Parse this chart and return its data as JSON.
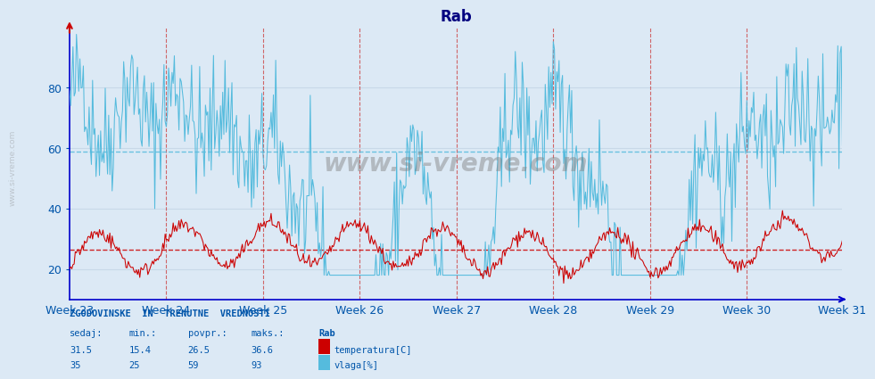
{
  "title": "Rab",
  "title_fontsize": 12,
  "title_color": "#000080",
  "bg_color": "#dce9f5",
  "x_weeks": [
    "Week 23",
    "Week 24",
    "Week 25",
    "Week 26",
    "Week 27",
    "Week 28",
    "Week 29",
    "Week 30",
    "Week 31"
  ],
  "ylim": [
    10,
    100
  ],
  "yticks": [
    20,
    40,
    60,
    80
  ],
  "temp_color": "#cc0000",
  "vlaga_color": "#55bbdd",
  "temp_avg": 26.5,
  "temp_min": 15.4,
  "temp_max": 36.6,
  "temp_sedaj": 31.5,
  "vlaga_avg": 59,
  "vlaga_min": 25,
  "vlaga_max": 93,
  "vlaga_sedaj": 35,
  "hline_vlaga": 59,
  "hline_temp": 26.5,
  "grid_color": "#c8d8e8",
  "vline_color": "#cc4444",
  "axis_color": "#0000cc",
  "tick_color": "#0055aa",
  "watermark": "www.si-vreme.com",
  "label_text": "ZGODOVINSKE  IN  TRENUTNE  VREDNOSTI",
  "footer_color": "#0055aa",
  "n_points": 672,
  "week_starts": [
    0,
    84,
    168,
    252,
    336,
    420,
    504,
    588,
    671
  ]
}
